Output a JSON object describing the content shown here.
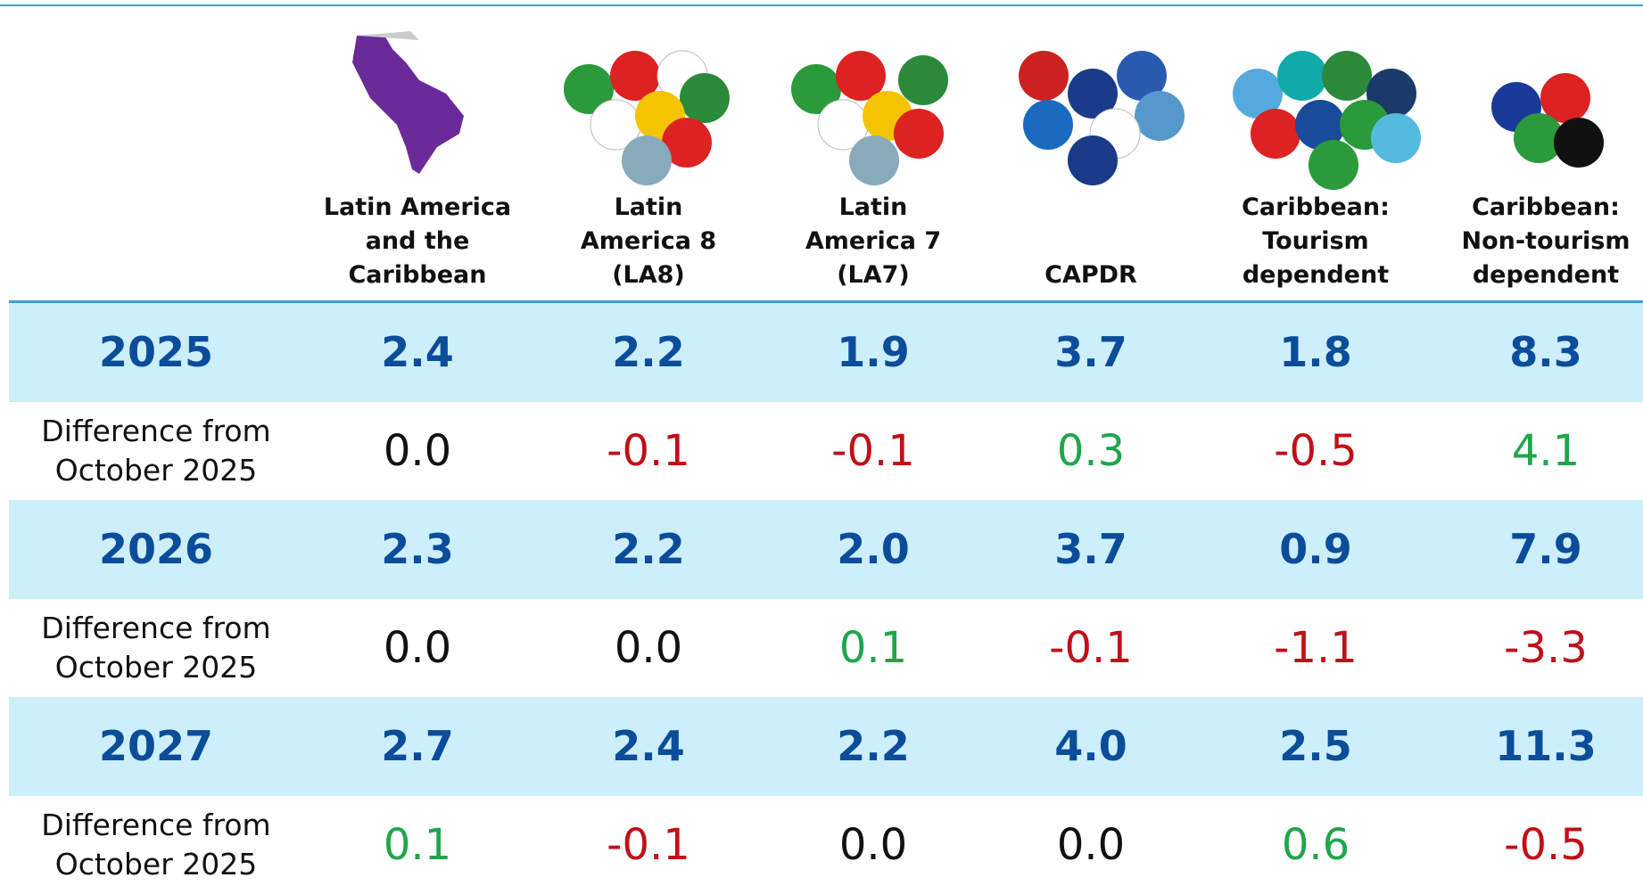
{
  "table": {
    "columns": [
      "Latin America\nand the\nCaribbean",
      "Latin\nAmerica 8\n(LA8)",
      "Latin\nAmerica 7\n(LA7)",
      "CAPDR",
      "Caribbean:\nTourism\ndependent",
      "Caribbean:\nNon-tourism\ndependent"
    ],
    "rows": [
      {
        "label": "2025",
        "values": [
          "2.4",
          "2.2",
          "1.9",
          "3.7",
          "1.8",
          "8.3"
        ]
      },
      {
        "label": "Difference from\nOctober 2025",
        "values": [
          "0.0",
          "-0.1",
          "-0.1",
          "0.3",
          "-0.5",
          "4.1"
        ]
      },
      {
        "label": "2026",
        "values": [
          "2.3",
          "2.2",
          "2.0",
          "3.7",
          "0.9",
          "7.9"
        ]
      },
      {
        "label": "Difference from\nOctober 2025",
        "values": [
          "0.0",
          "0.0",
          "0.1",
          "-0.1",
          "-1.1",
          "-3.3"
        ]
      },
      {
        "label": "2027",
        "values": [
          "2.7",
          "2.4",
          "2.2",
          "4.0",
          "2.5",
          "11.3"
        ]
      },
      {
        "label": "Difference from\nOctober 2025",
        "values": [
          "0.1",
          "-0.1",
          "0.0",
          "0.0",
          "0.6",
          "-0.5"
        ]
      }
    ]
  }
}
